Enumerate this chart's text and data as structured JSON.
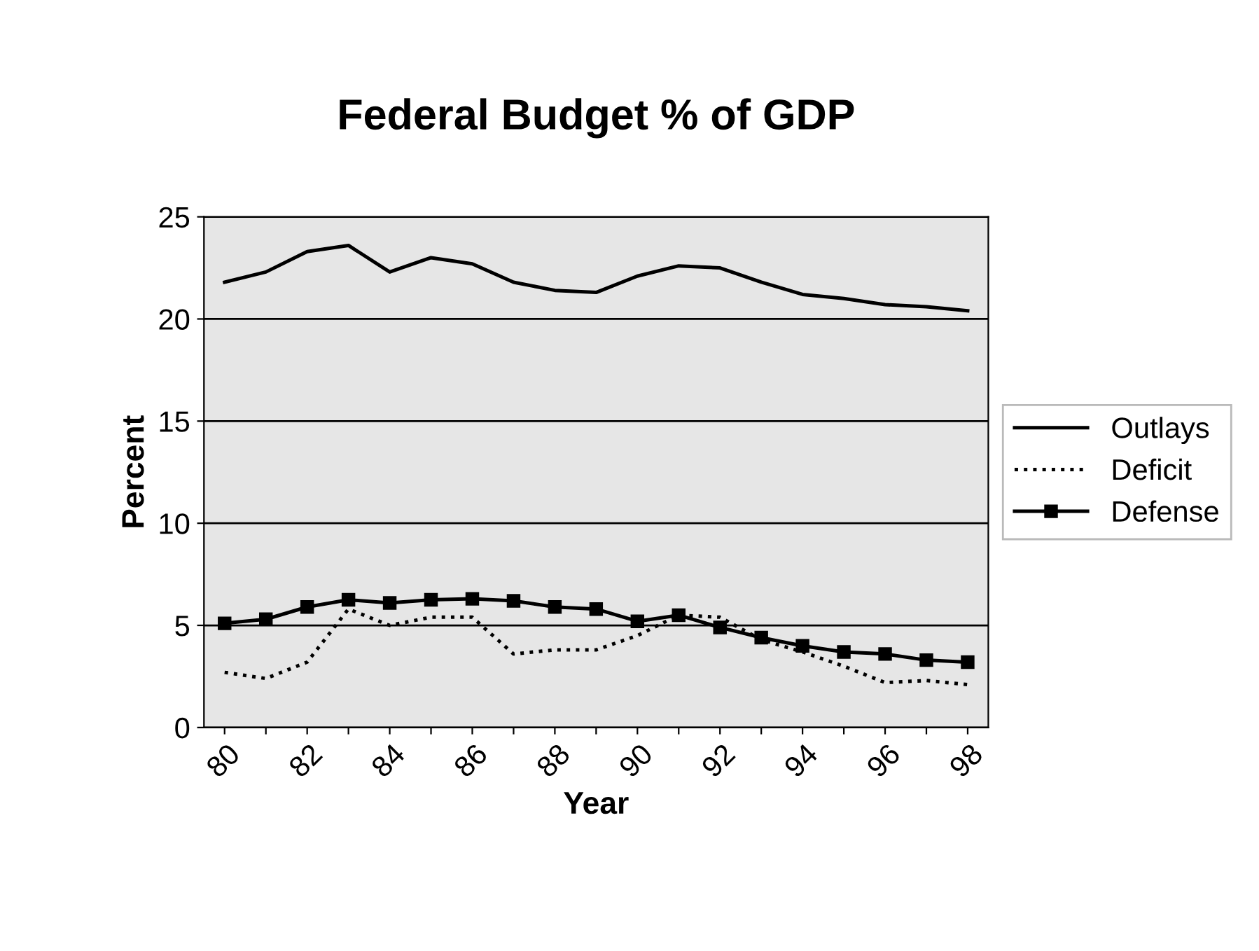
{
  "chart_data": {
    "type": "line",
    "title": "Federal Budget % of GDP",
    "xlabel": "Year",
    "ylabel": "Percent",
    "categories": [
      "80",
      null,
      "82",
      null,
      "84",
      null,
      "86",
      null,
      "88",
      null,
      "90",
      null,
      "92",
      null,
      "94",
      null,
      "96",
      null,
      "98"
    ],
    "series": [
      {
        "name": "Outlays",
        "color": "#000000",
        "line_style": "solid",
        "marker": "none",
        "values": [
          21.8,
          22.3,
          23.3,
          23.6,
          22.3,
          23.0,
          22.7,
          21.8,
          21.4,
          21.3,
          22.1,
          22.6,
          22.5,
          21.8,
          21.2,
          21.0,
          20.7,
          20.6,
          20.4
        ]
      },
      {
        "name": "Deficit",
        "color": "#000000",
        "line_style": "dotted",
        "marker": "none",
        "values": [
          2.7,
          2.4,
          3.2,
          5.8,
          5.0,
          5.4,
          5.4,
          3.6,
          3.8,
          3.8,
          4.5,
          5.5,
          5.4,
          4.3,
          3.7,
          3.0,
          2.2,
          2.3,
          2.1
        ]
      },
      {
        "name": "Defense",
        "color": "#000000",
        "line_style": "solid",
        "marker": "square",
        "values": [
          5.1,
          5.3,
          5.9,
          6.25,
          6.1,
          6.25,
          6.3,
          6.2,
          5.9,
          5.8,
          5.2,
          5.5,
          4.9,
          4.4,
          4.0,
          3.7,
          3.6,
          3.3,
          3.2
        ]
      }
    ],
    "ylim": [
      0,
      25
    ],
    "yticks": [
      0,
      5,
      10,
      15,
      20,
      25
    ],
    "grid": "y",
    "legend": "right"
  }
}
